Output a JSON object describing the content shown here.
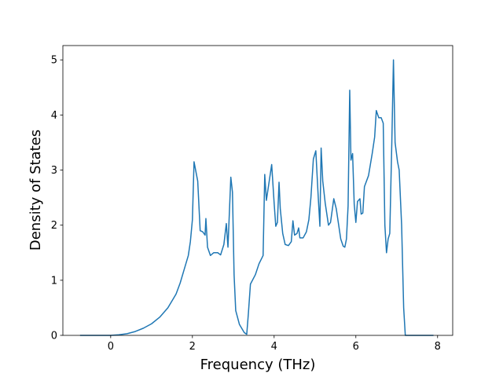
{
  "chart_data": {
    "type": "line",
    "xlabel": "Frequency (THz)",
    "ylabel": "Density of States",
    "xlim": [
      -1.17,
      8.37
    ],
    "ylim": [
      0,
      5.26
    ],
    "xticks": [
      0,
      2,
      4,
      6,
      8
    ],
    "yticks": [
      0,
      1,
      2,
      3,
      4,
      5
    ],
    "series": [
      {
        "color": "#1f77b4",
        "x": [
          -0.75,
          0,
          0.2,
          0.4,
          0.6,
          0.8,
          1.0,
          1.2,
          1.4,
          1.6,
          1.7,
          1.8,
          1.9,
          1.95,
          2.0,
          2.04,
          2.13,
          2.19,
          2.25,
          2.31,
          2.33,
          2.37,
          2.44,
          2.52,
          2.62,
          2.69,
          2.77,
          2.83,
          2.87,
          2.94,
          2.98,
          3.02,
          3.06,
          3.15,
          3.27,
          3.33,
          3.37,
          3.42,
          3.54,
          3.63,
          3.73,
          3.77,
          3.81,
          3.88,
          3.94,
          4.0,
          4.04,
          4.08,
          4.12,
          4.15,
          4.21,
          4.27,
          4.35,
          4.42,
          4.46,
          4.5,
          4.56,
          4.6,
          4.63,
          4.71,
          4.79,
          4.85,
          4.9,
          4.96,
          5.02,
          5.08,
          5.12,
          5.15,
          5.19,
          5.25,
          5.33,
          5.38,
          5.46,
          5.52,
          5.58,
          5.63,
          5.69,
          5.73,
          5.77,
          5.81,
          5.85,
          5.88,
          5.92,
          5.96,
          6.0,
          6.04,
          6.1,
          6.13,
          6.17,
          6.21,
          6.31,
          6.4,
          6.46,
          6.5,
          6.56,
          6.62,
          6.67,
          6.71,
          6.75,
          6.79,
          6.83,
          6.88,
          6.92,
          6.96,
          7.02,
          7.06,
          7.12,
          7.17,
          7.21,
          7.9
        ],
        "values": [
          0,
          0,
          0.01,
          0.03,
          0.07,
          0.13,
          0.21,
          0.33,
          0.5,
          0.75,
          0.95,
          1.2,
          1.45,
          1.7,
          2.1,
          3.15,
          2.8,
          1.9,
          1.88,
          1.82,
          2.12,
          1.6,
          1.45,
          1.5,
          1.5,
          1.46,
          1.65,
          2.03,
          1.6,
          2.87,
          2.6,
          1.1,
          0.45,
          0.2,
          0.05,
          0.02,
          0.4,
          0.93,
          1.1,
          1.3,
          1.45,
          2.92,
          2.45,
          2.8,
          3.1,
          2.4,
          1.98,
          2.05,
          2.78,
          2.3,
          1.85,
          1.65,
          1.63,
          1.7,
          2.08,
          1.82,
          1.85,
          1.95,
          1.77,
          1.77,
          1.88,
          2.1,
          2.5,
          3.2,
          3.35,
          2.5,
          1.98,
          3.4,
          2.8,
          2.4,
          2.0,
          2.05,
          2.48,
          2.3,
          2.0,
          1.75,
          1.62,
          1.6,
          1.75,
          2.35,
          4.45,
          3.18,
          3.3,
          2.38,
          2.05,
          2.43,
          2.48,
          2.2,
          2.22,
          2.7,
          2.9,
          3.3,
          3.6,
          4.08,
          3.95,
          3.95,
          3.85,
          2.0,
          1.5,
          1.75,
          1.85,
          3.5,
          5.0,
          3.5,
          3.15,
          3.0,
          2.0,
          0.5,
          0,
          0
        ]
      }
    ]
  }
}
